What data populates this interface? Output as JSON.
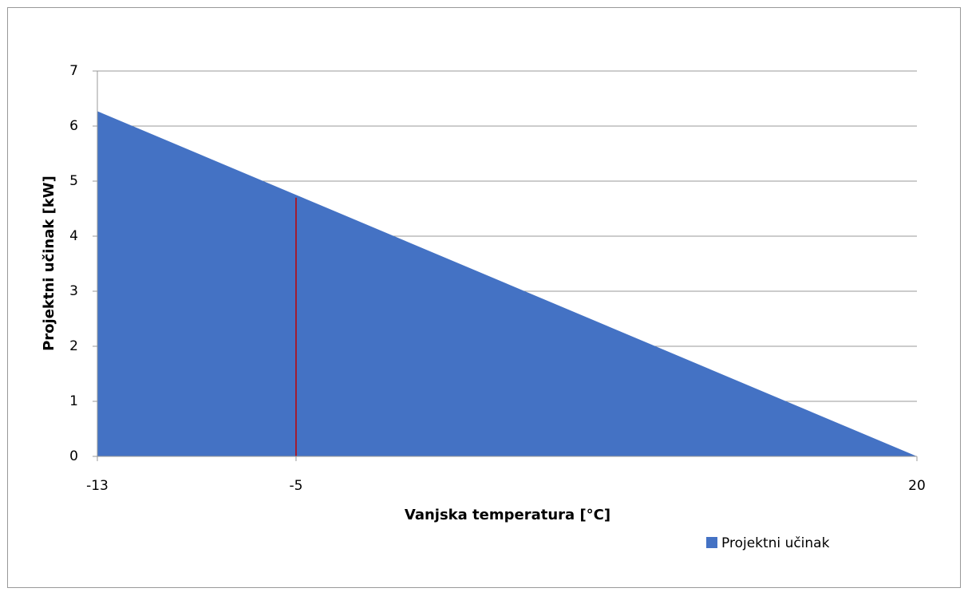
{
  "chart_data": {
    "type": "area",
    "x": [
      -13,
      -5,
      20
    ],
    "series": [
      {
        "name": "Projektni učinak",
        "color": "#4472c4",
        "values": [
          6.27,
          4.75,
          0
        ]
      }
    ],
    "vline": {
      "x": -5,
      "y": 4.7,
      "color": "#c00000"
    },
    "xlabel": "Vanjska temperatura [°C]",
    "ylabel": "Projektni učinak [kW]",
    "xlim": [
      -13,
      20
    ],
    "xticks": [
      -13,
      -5,
      20
    ],
    "ylim": [
      0,
      7
    ],
    "yticks": [
      0,
      1,
      2,
      3,
      4,
      5,
      6,
      7
    ],
    "grid": true,
    "legend": "bottom-right"
  }
}
